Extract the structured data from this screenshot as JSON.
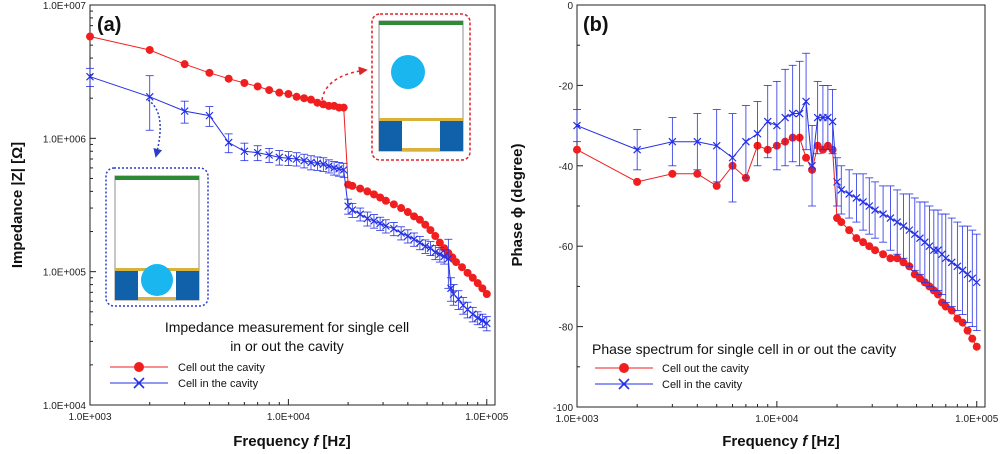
{
  "colors": {
    "red": "#f01e1e",
    "blue": "#2430e6",
    "cell": "#1ab6ef",
    "electrode": "#1061a9",
    "top_film": "#2e8b35",
    "gold": "#d8b23a",
    "inset_red": "#e0242a",
    "inset_blue": "#2a3ec9"
  },
  "chart_data": [
    {
      "type": "line",
      "panel_label": "(a)",
      "title": "Impedance measurement for single cell",
      "subtitle": "in or out the cavity",
      "xlabel_prefix": "Frequency ",
      "xlabel_var": "f",
      "xlabel_unit": " [Hz]",
      "ylabel": "Impedance |Z| [Ω]",
      "xscale": "log",
      "yscale": "log",
      "xlim": [
        1000,
        110000
      ],
      "ylim": [
        10000,
        10000000
      ],
      "xticks": [
        1000,
        10000,
        100000
      ],
      "xtick_labels": [
        "1.0E+003",
        "1.0E+004",
        "1.0E+005"
      ],
      "yticks": [
        10000,
        100000,
        1000000,
        10000000
      ],
      "ytick_labels": [
        "1.0E+004",
        "1.0E+005",
        "1.0E+006",
        "1.0E+007"
      ],
      "legend_position": "bottom-left",
      "series": [
        {
          "name": "Cell out the cavity",
          "marker": "circle",
          "color": "#f01e1e",
          "x": [
            1000,
            2000,
            3000,
            4000,
            5000,
            6000,
            7000,
            8000,
            9000,
            10000,
            11000,
            12000,
            13000,
            14000,
            15000,
            16000,
            17000,
            18000,
            19000,
            20000,
            21000,
            23000,
            25000,
            27000,
            29000,
            31000,
            34000,
            37000,
            40000,
            43000,
            46000,
            49000,
            52000,
            55000,
            58000,
            61000,
            64000,
            67000,
            70000,
            75000,
            80000,
            85000,
            90000,
            95000,
            100000
          ],
          "y": [
            5800000,
            4600000,
            3600000,
            3100000,
            2800000,
            2600000,
            2450000,
            2300000,
            2200000,
            2150000,
            2050000,
            2000000,
            1950000,
            1850000,
            1800000,
            1750000,
            1750000,
            1700000,
            1700000,
            450000,
            440000,
            420000,
            400000,
            380000,
            360000,
            340000,
            320000,
            300000,
            280000,
            260000,
            245000,
            225000,
            205000,
            185000,
            165000,
            150000,
            138000,
            128000,
            118000,
            108000,
            98000,
            90000,
            82000,
            75000,
            68000
          ]
        },
        {
          "name": "Cell in the cavity",
          "marker": "x",
          "color": "#2430e6",
          "x": [
            1000,
            2000,
            3000,
            4000,
            5000,
            6000,
            7000,
            8000,
            9000,
            10000,
            11000,
            12000,
            13000,
            14000,
            15000,
            16000,
            17000,
            18000,
            19000,
            20000,
            21000,
            23000,
            25000,
            27000,
            29000,
            31000,
            34000,
            37000,
            40000,
            43000,
            46000,
            49000,
            52000,
            55000,
            58000,
            61000,
            64000,
            66000,
            68000,
            72000,
            76000,
            80000,
            85000,
            90000,
            95000,
            100000
          ],
          "y": [
            2900000,
            2050000,
            1600000,
            1480000,
            930000,
            800000,
            780000,
            750000,
            720000,
            710000,
            700000,
            680000,
            660000,
            650000,
            640000,
            620000,
            600000,
            590000,
            580000,
            310000,
            290000,
            270000,
            250000,
            240000,
            230000,
            220000,
            210000,
            195000,
            185000,
            175000,
            165000,
            155000,
            150000,
            140000,
            135000,
            130000,
            125000,
            75000,
            68000,
            62000,
            56000,
            52000,
            48000,
            45000,
            43000,
            41000
          ],
          "err": [
            450000,
            900000,
            300000,
            250000,
            150000,
            120000,
            100000,
            90000,
            90000,
            85000,
            80000,
            80000,
            80000,
            75000,
            75000,
            70000,
            70000,
            70000,
            70000,
            40000,
            35000,
            30000,
            30000,
            28000,
            26000,
            25000,
            24000,
            22000,
            21000,
            20000,
            19000,
            18000,
            18000,
            17000,
            17000,
            16000,
            50000,
            15000,
            12000,
            10000,
            8000,
            7000,
            6000,
            5000,
            5000,
            5000
          ]
        }
      ]
    },
    {
      "type": "line",
      "panel_label": "(b)",
      "title": "Phase spectrum for single cell in or out the cavity",
      "xlabel_prefix": "Frequency ",
      "xlabel_var": "f",
      "xlabel_unit": " [Hz]",
      "ylabel_prefix": "Phase ",
      "ylabel_var": "ϕ",
      "ylabel_unit": " (degree)",
      "xscale": "log",
      "yscale": "linear",
      "xlim": [
        1000,
        110000
      ],
      "ylim": [
        -100,
        0
      ],
      "xticks": [
        1000,
        10000,
        100000
      ],
      "xtick_labels": [
        "1.0E+003",
        "1.0E+004",
        "1.0E+005"
      ],
      "yticks": [
        0,
        -20,
        -40,
        -60,
        -80,
        -100
      ],
      "ytick_labels": [
        "0",
        "-20",
        "-40",
        "-60",
        "-80",
        "-100"
      ],
      "legend_position": "bottom-left",
      "series": [
        {
          "name": "Cell out the cavity",
          "marker": "circle",
          "color": "#f01e1e",
          "x": [
            1000,
            2000,
            3000,
            4000,
            5000,
            6000,
            7000,
            8000,
            9000,
            10000,
            11000,
            12000,
            13000,
            14000,
            15000,
            16000,
            17000,
            18000,
            19000,
            20000,
            21000,
            23000,
            25000,
            27000,
            29000,
            31000,
            34000,
            37000,
            40000,
            43000,
            46000,
            49000,
            52000,
            55000,
            58000,
            61000,
            64000,
            67000,
            70000,
            75000,
            80000,
            85000,
            90000,
            95000,
            100000
          ],
          "y": [
            -36,
            -44,
            -42,
            -42,
            -45,
            -40,
            -43,
            -35,
            -36,
            -35,
            -34,
            -33,
            -33,
            -38,
            -41,
            -35,
            -36,
            -35,
            -36,
            -53,
            -54,
            -56,
            -58,
            -59,
            -60,
            -61,
            -62,
            -63,
            -63,
            -64,
            -65,
            -67,
            -68,
            -69,
            -70,
            -71,
            -72,
            -74,
            -75,
            -76,
            -78,
            -79,
            -81,
            -83,
            -85
          ]
        },
        {
          "name": "Cell in the cavity",
          "marker": "x",
          "color": "#2430e6",
          "x": [
            1000,
            2000,
            3000,
            4000,
            5000,
            6000,
            7000,
            8000,
            9000,
            10000,
            11000,
            12000,
            13000,
            14000,
            15000,
            16000,
            17000,
            18000,
            19000,
            20000,
            21000,
            23000,
            25000,
            27000,
            29000,
            31000,
            34000,
            37000,
            40000,
            43000,
            46000,
            49000,
            52000,
            55000,
            58000,
            61000,
            64000,
            67000,
            70000,
            75000,
            80000,
            85000,
            90000,
            95000,
            100000
          ],
          "y": [
            -30,
            -36,
            -34,
            -34,
            -35,
            -38,
            -34,
            -32,
            -29,
            -30,
            -28,
            -27,
            -27,
            -24,
            -40,
            -28,
            -28,
            -28,
            -29,
            -44,
            -46,
            -47,
            -48,
            -49,
            -50,
            -51,
            -52,
            -53,
            -54,
            -55,
            -56,
            -57,
            -58,
            -59,
            -60,
            -61,
            -61,
            -62,
            -63,
            -64,
            -65,
            -66,
            -67,
            -68,
            -69
          ],
          "err": [
            4,
            5,
            6,
            7,
            9,
            11,
            9,
            8,
            9,
            11,
            12,
            12,
            13,
            12,
            10,
            9,
            8,
            8,
            8,
            6,
            6,
            6,
            6,
            7,
            7,
            7,
            7,
            8,
            8,
            8,
            9,
            9,
            9,
            10,
            10,
            10,
            10,
            10,
            11,
            11,
            11,
            11,
            12,
            12,
            12
          ]
        }
      ]
    }
  ]
}
